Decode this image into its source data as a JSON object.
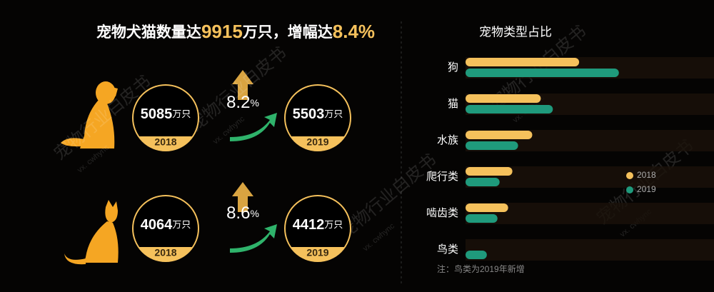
{
  "summary": {
    "prefix": "宠物犬猫数量达",
    "total": "9915",
    "middle": "万只，增幅达",
    "rate": "8.4%"
  },
  "groups": [
    {
      "from": {
        "number": "5085",
        "unit": "万只",
        "year": "2018"
      },
      "to": {
        "number": "5503",
        "unit": "万只",
        "year": "2019"
      },
      "growth": "8.2",
      "growth_unit": "%"
    },
    {
      "from": {
        "number": "4064",
        "unit": "万只",
        "year": "2018"
      },
      "to": {
        "number": "4412",
        "unit": "万只",
        "year": "2019"
      },
      "growth": "8.6",
      "growth_unit": "%"
    }
  ],
  "watermark": {
    "text": "宠物行业白皮书",
    "sub": "vx. cwhync"
  },
  "chart_data": {
    "type": "bar",
    "orientation": "horizontal",
    "title": "宠物类型占比",
    "categories": [
      "狗",
      "猫",
      "水族",
      "爬行类",
      "啮齿类",
      "鸟类"
    ],
    "series": [
      {
        "name": "2018",
        "color": "#f5c15c",
        "values": [
          160,
          106,
          94,
          66,
          60,
          null
        ]
      },
      {
        "name": "2019",
        "color": "#1f9a7c",
        "values": [
          216,
          123,
          74,
          48,
          45,
          30
        ]
      }
    ],
    "xlim": [
      0,
      350
    ],
    "note": "注：鸟类为2019年新增"
  }
}
